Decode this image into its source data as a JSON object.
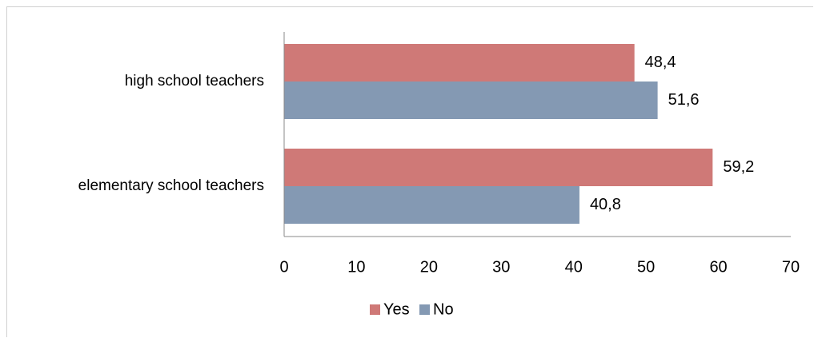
{
  "chart_data": {
    "type": "bar",
    "orientation": "horizontal",
    "categories": [
      "high school teachers",
      "elementary school teachers"
    ],
    "series": [
      {
        "name": "Yes",
        "color": "#CF7977",
        "values": [
          48.4,
          59.2
        ],
        "labels": [
          "48,4",
          "59,2"
        ]
      },
      {
        "name": "No",
        "color": "#8499B3",
        "values": [
          51.6,
          40.8
        ],
        "labels": [
          "51,6",
          "40,8"
        ]
      }
    ],
    "xlim": [
      0,
      70
    ],
    "xticks": [
      0,
      10,
      20,
      30,
      40,
      50,
      60,
      70
    ],
    "grid": false,
    "legend_position": "bottom"
  }
}
